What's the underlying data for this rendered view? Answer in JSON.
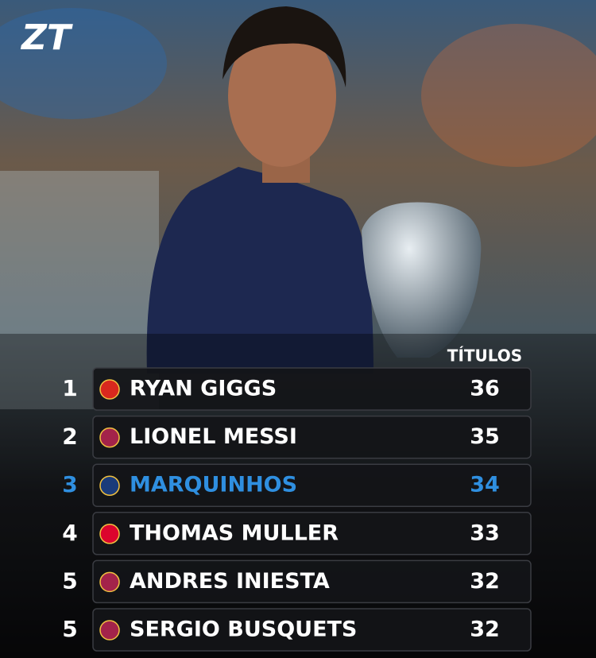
{
  "logo": "ZT",
  "table": {
    "header": "TÍTULOS",
    "rows": [
      {
        "rank": 1,
        "name": "RYAN GIGGS",
        "titles": 36,
        "color": "#ffffff",
        "badge": "#d8281e"
      },
      {
        "rank": 2,
        "name": "LIONEL MESSI",
        "titles": 35,
        "color": "#ffffff",
        "badge": "#a3234a"
      },
      {
        "rank": 3,
        "name": "MARQUINHOS",
        "titles": 34,
        "color": "#2f8fe0",
        "badge": "#1a3b7a"
      },
      {
        "rank": 4,
        "name": "THOMAS MULLER",
        "titles": 33,
        "color": "#ffffff",
        "badge": "#dc052d"
      },
      {
        "rank": 5,
        "name": "ANDRES INIESTA",
        "titles": 32,
        "color": "#ffffff",
        "badge": "#a3234a"
      },
      {
        "rank": 5,
        "name": "SERGIO BUSQUETS",
        "titles": 32,
        "color": "#ffffff",
        "badge": "#a3234a"
      }
    ]
  }
}
